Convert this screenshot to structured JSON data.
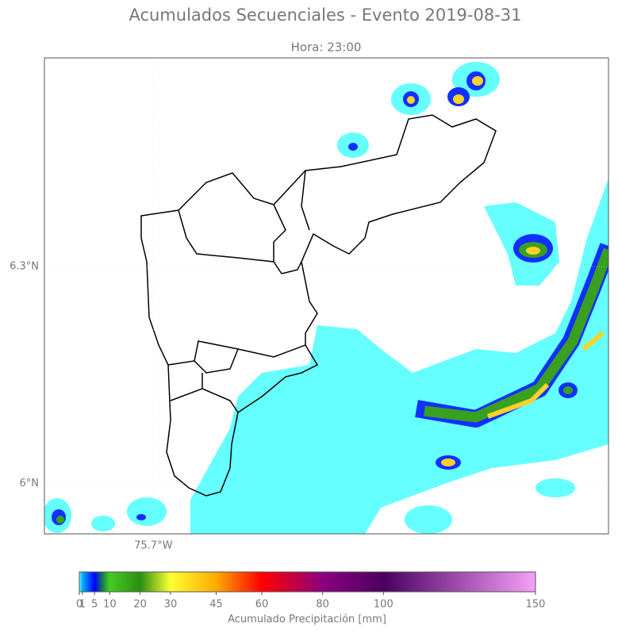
{
  "chart_data": {
    "type": "map",
    "title": "Acumulados Secuenciales - Evento 2019-08-31",
    "subtitle": "Hora: 23:00",
    "xlim": [
      -75.851,
      -75.069
    ],
    "ylim": [
      5.93,
      6.589
    ],
    "xticks": [
      {
        "value": -75.7,
        "label": "75.7°W"
      }
    ],
    "yticks": [
      {
        "value": 6.0,
        "label": "6°N"
      },
      {
        "value": 6.3,
        "label": "6.3°N"
      }
    ],
    "grid": true,
    "colorbar": {
      "label": "Acumulado Precipitación [mm]",
      "lim": [
        0,
        150
      ],
      "ticks": [
        0,
        1,
        5,
        10,
        20,
        30,
        45,
        60,
        80,
        100,
        150
      ],
      "stops": [
        {
          "value": 0,
          "color": "#7ff4ff"
        },
        {
          "value": 1,
          "color": "#00b4ff"
        },
        {
          "value": 5,
          "color": "#0000ff"
        },
        {
          "value": 8,
          "color": "#1a8a40"
        },
        {
          "value": 10,
          "color": "#44cc22"
        },
        {
          "value": 20,
          "color": "#2a8f10"
        },
        {
          "value": 30,
          "color": "#ffff33"
        },
        {
          "value": 45,
          "color": "#ffaa00"
        },
        {
          "value": 60,
          "color": "#ff0000"
        },
        {
          "value": 80,
          "color": "#8b0080"
        },
        {
          "value": 100,
          "color": "#4a0060"
        },
        {
          "value": 150,
          "color": "#f4a0f8"
        }
      ]
    }
  }
}
